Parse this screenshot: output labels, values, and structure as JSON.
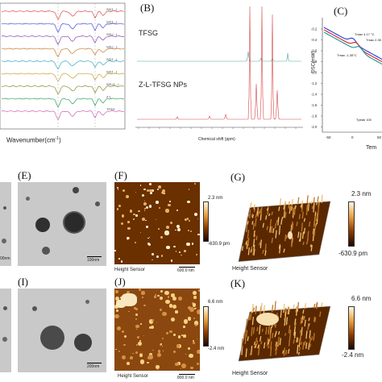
{
  "panels": {
    "A": {
      "xlabel": "Wavenumber(cm",
      "xlabel_sup": "-1",
      "xlabel_end": ")",
      "series": [
        "SZ(1...)",
        "SZ(1...)",
        "SZL(...)",
        "SZL(...)",
        "SZ(1...)",
        "SZ(1...)",
        "SZL(1...)",
        "Z-L",
        "TFSG"
      ]
    },
    "B": {
      "label": "(B)",
      "tfsg": "TFSG",
      "nps": "Z-L-TFSG NPs",
      "xlabel": "Chemical shift (ppm)"
    },
    "C": {
      "label": "(C)",
      "ylabel": "DSC(mW)",
      "xlabel": "Tem",
      "ann1": "Tmax 4.17 °C",
      "ann2": "Tmax 2.35",
      "ann3": "Tmax -1.35°C",
      "ann4": "Tpeak 100",
      "yticks": [
        "-0.2",
        "-0.4",
        "-0.6",
        "-0.8",
        "-1.0",
        "-1.2",
        "-1.4",
        "-1.6",
        "-1.8",
        "-2.0"
      ],
      "xticks": [
        "-50",
        "0",
        "50"
      ]
    },
    "E": {
      "label": "(E)",
      "scale": "100nm"
    },
    "F": {
      "label": "(F)",
      "top": "2.3 nm",
      "bottom": "-630.9 pm",
      "caption": "Height Sensor",
      "scale": "600.0 nm"
    },
    "G": {
      "label": "(G)",
      "top": "2.3 nm",
      "bottom": "-630.9 pm",
      "caption": "Height Sensor"
    },
    "I": {
      "label": "(I)",
      "scale": "200nm"
    },
    "J": {
      "label": "(J)",
      "top": "6.6 nm",
      "bottom": "-2.4 nm",
      "caption": "Height Sensor",
      "scale": "800.0 nm"
    },
    "K": {
      "label": "(K)",
      "top": "6.6 nm",
      "bottom": "-2.4 nm",
      "caption": "Height Sensor"
    },
    "D_edge": {
      "scale": "00nm"
    }
  },
  "colors": {
    "ftir": [
      "#e24a4a",
      "#4a4ad8",
      "#8a4ab0",
      "#c27a2a",
      "#38a8c8",
      "#c8a030",
      "#8a8a30",
      "#30a060",
      "#d060b0"
    ],
    "nmr_top": "#48a8a0",
    "nmr_bottom": "#d84848",
    "dsc": [
      "#2a4ad8",
      "#d83030",
      "#2a9a9a"
    ],
    "afm_dark": "#3a1a00",
    "afm_light": "#f0d080"
  }
}
